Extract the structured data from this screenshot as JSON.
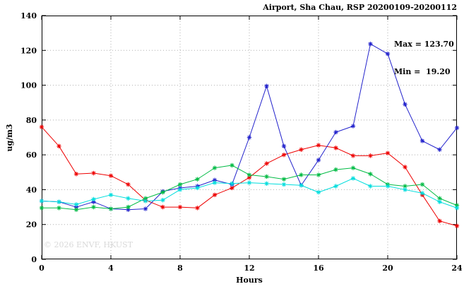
{
  "title": "Airport, Sha Chau, RSP 20200109-20200112",
  "annotation": {
    "max_label": "Max = 123.70",
    "min_label": "Min =  19.20"
  },
  "watermark": "© 2026 ENVF, HKUST",
  "chart_data": {
    "type": "line",
    "title": "Airport, Sha Chau, RSP 20200109-20200112",
    "xlabel": "Hours",
    "ylabel": "ug/m3",
    "xlim": [
      0,
      24
    ],
    "ylim": [
      0,
      140
    ],
    "xticks": [
      0,
      4,
      8,
      12,
      16,
      20,
      24
    ],
    "yticks": [
      0,
      20,
      40,
      60,
      80,
      100,
      120,
      140
    ],
    "grid": true,
    "legend": "none",
    "marker": "asterisk",
    "x": [
      0,
      1,
      2,
      3,
      4,
      5,
      6,
      7,
      8,
      9,
      10,
      11,
      12,
      13,
      14,
      15,
      16,
      17,
      18,
      19,
      20,
      21,
      22,
      23,
      24
    ],
    "series": [
      {
        "name": "red-series",
        "color": "#ee0000",
        "values": [
          76,
          65,
          49,
          49.5,
          48,
          43,
          34,
          30,
          30,
          29.5,
          37,
          41,
          47,
          55,
          60,
          63,
          65.5,
          64,
          59.5,
          59.5,
          61,
          53,
          37,
          22,
          19.2
        ]
      },
      {
        "name": "blue-series",
        "color": "#2222cc",
        "values": [
          33.5,
          33,
          30,
          33,
          29,
          28.5,
          29,
          39,
          41,
          42,
          45.5,
          43,
          70,
          99.5,
          65,
          42.5,
          57,
          73,
          76.5,
          123.7,
          118,
          89,
          68,
          63,
          75.5
        ]
      },
      {
        "name": "green-series",
        "color": "#00bb44",
        "values": [
          29.5,
          29.5,
          28.5,
          30,
          29,
          30,
          35,
          38.5,
          43,
          46,
          52.5,
          54,
          48.5,
          47.5,
          46,
          48.5,
          48.5,
          51.5,
          52.5,
          49,
          43,
          42,
          43,
          35,
          31
        ]
      },
      {
        "name": "cyan-series",
        "color": "#00dddd",
        "values": [
          33.5,
          33,
          31.5,
          34.5,
          37,
          35,
          33.5,
          34,
          40,
          41,
          44,
          43.5,
          44,
          43.5,
          43,
          42.5,
          38.5,
          42,
          46.5,
          42,
          42,
          40,
          38,
          33,
          29.5
        ]
      }
    ]
  }
}
